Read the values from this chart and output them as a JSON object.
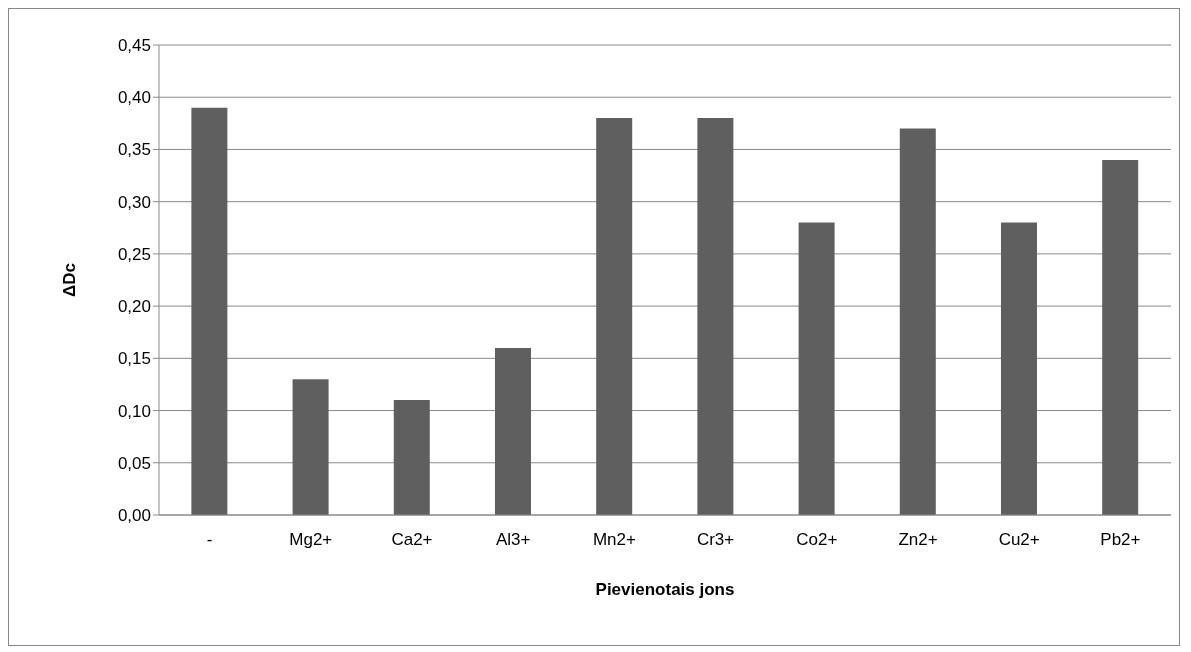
{
  "chart_data": {
    "type": "bar",
    "xlabel": "Pievienotais jons",
    "ylabel": "ΔDc",
    "categories": [
      "-",
      "Mg2+",
      "Ca2+",
      "Al3+",
      "Mn2+",
      "Cr3+",
      "Co2+",
      "Zn2+",
      "Cu2+",
      "Pb2+"
    ],
    "values": [
      0.39,
      0.13,
      0.11,
      0.16,
      0.38,
      0.38,
      0.28,
      0.37,
      0.28,
      0.34
    ],
    "color": "#5f5f5f",
    "ylim": [
      0,
      0.45
    ],
    "yticks": [
      {
        "value": 0,
        "label": "0,00"
      },
      {
        "value": 0.05,
        "label": "0,05"
      },
      {
        "value": 0.1,
        "label": "0,10"
      },
      {
        "value": 0.15,
        "label": "0,15"
      },
      {
        "value": 0.2,
        "label": "0,20"
      },
      {
        "value": 0.25,
        "label": "0,25"
      },
      {
        "value": 0.3,
        "label": "0,30"
      },
      {
        "value": 0.35,
        "label": "0,35"
      },
      {
        "value": 0.4,
        "label": "0,40"
      },
      {
        "value": 0.45,
        "label": "0,45"
      }
    ],
    "grid": "y"
  }
}
